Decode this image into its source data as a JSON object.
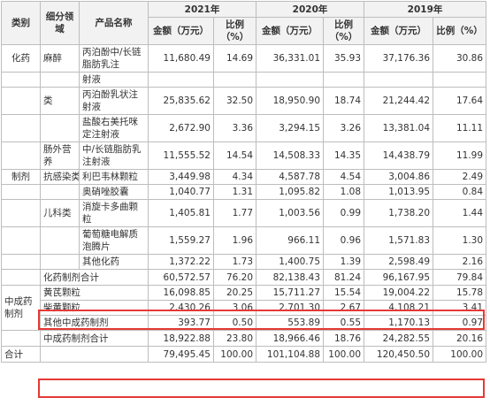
{
  "headers": {
    "category": "类别",
    "subfield": "细分领域",
    "product": "产品名称",
    "years": [
      "2021年",
      "2020年",
      "2019年"
    ],
    "amount": "金额（万元）",
    "ratio": "比例（%）"
  },
  "rows": {
    "r1": {
      "category": "化药",
      "subfield": "麻醉",
      "product": "丙泊酚中/长链脂肪乳注",
      "a21": "11,680.49",
      "p21": "14.69",
      "a20": "36,331.01",
      "p20": "35.93",
      "a19": "37,176.36",
      "p19": "30.86"
    },
    "r2": {
      "product": "射液"
    },
    "r3": {
      "subfield": "类",
      "product": "丙泊酚乳状注射液",
      "a21": "25,835.62",
      "p21": "32.50",
      "a20": "18,950.90",
      "p20": "18.74",
      "a19": "21,244.42",
      "p19": "17.64"
    },
    "r4": {
      "product": "盐酸右美托咪定注射液",
      "a21": "2,672.90",
      "p21": "3.36",
      "a20": "3,294.15",
      "p20": "3.26",
      "a19": "13,381.04",
      "p19": "11.11"
    },
    "r5": {
      "subfield": "肠外营养",
      "product": "中/长链脂肪乳注射液",
      "a21": "11,555.52",
      "p21": "14.54",
      "a20": "14,508.33",
      "p20": "14.35",
      "a19": "14,438.79",
      "p19": "11.99"
    },
    "r6": {
      "category": "制剂",
      "subfield": "抗感染类",
      "product": "利巴韦林颗粒",
      "a21": "3,449.98",
      "p21": "4.34",
      "a20": "4,587.78",
      "p20": "4.54",
      "a19": "3,004.86",
      "p19": "2.49"
    },
    "r7": {
      "product": "奥硝唑胶囊",
      "a21": "1,040.77",
      "p21": "1.31",
      "a20": "1,095.82",
      "p20": "1.08",
      "a19": "1,013.95",
      "p19": "0.84"
    },
    "r8": {
      "subfield": "儿科类",
      "product": "消旋卡多曲颗粒",
      "a21": "1,405.81",
      "p21": "1.77",
      "a20": "1,003.56",
      "p20": "0.99",
      "a19": "1,738.20",
      "p19": "1.44"
    },
    "r9": {
      "product": "葡萄糖电解质泡腾片",
      "a21": "1,559.27",
      "p21": "1.96",
      "a20": "966.11",
      "p20": "0.96",
      "a19": "1,571.83",
      "p19": "1.30"
    },
    "r10": {
      "product": "其他化药",
      "a21": "1,372.22",
      "p21": "1.73",
      "a20": "1,400.75",
      "p20": "1.39",
      "a19": "2,598.49",
      "p19": "2.16"
    },
    "r11": {
      "product": "化药制剂合计",
      "a21": "60,572.57",
      "p21": "76.20",
      "a20": "82,138.43",
      "p20": "81.24",
      "a19": "96,167.95",
      "p19": "79.84"
    },
    "r12": {
      "category": "中成药制剂",
      "product": "黄芪颗粒",
      "a21": "16,098.85",
      "p21": "20.25",
      "a20": "15,711.27",
      "p20": "15.54",
      "a19": "19,004.22",
      "p19": "15.78"
    },
    "r13": {
      "product": "柴黄颗粒",
      "a21": "2,430.26",
      "p21": "3.06",
      "a20": "2,701.30",
      "p20": "2.67",
      "a19": "4,108.21",
      "p19": "3.41"
    },
    "r14": {
      "product": "其他中成药制剂",
      "a21": "393.77",
      "p21": "0.50",
      "a20": "553.89",
      "p20": "0.55",
      "a19": "1,170.13",
      "p19": "0.97"
    },
    "r15": {
      "product": "中成药制剂合计",
      "a21": "18,922.88",
      "p21": "23.80",
      "a20": "18,966.46",
      "p20": "18.76",
      "a19": "24,282.55",
      "p19": "20.16"
    },
    "r16": {
      "category": "合计",
      "a21": "79,495.45",
      "p21": "100.00",
      "a20": "101,104.88",
      "p20": "100.00",
      "a19": "120,450.50",
      "p19": "100.00"
    }
  },
  "colors": {
    "border": "#bdbdbd",
    "header_bg": "#f2f2f2",
    "highlight": "#e53935"
  }
}
